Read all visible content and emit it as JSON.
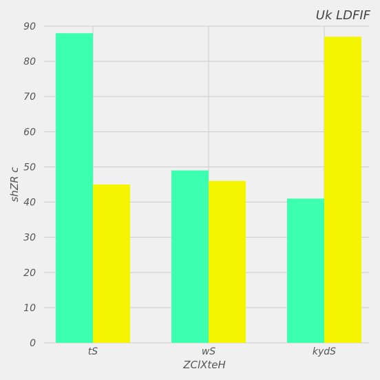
{
  "chart_data": {
    "type": "bar",
    "title": "Uk  LDFIF",
    "xlabel": "ZClXteH",
    "ylabel": "shZR c",
    "categories": [
      "tS",
      "wS",
      "kydS"
    ],
    "series": [
      {
        "values": [
          88,
          49,
          41
        ],
        "color": "#3dffb0"
      },
      {
        "values": [
          45,
          46,
          87
        ],
        "color": "#f5f500"
      }
    ],
    "ylim": [
      0,
      90
    ],
    "yticks": [
      0,
      10,
      20,
      30,
      40,
      50,
      60,
      70,
      80,
      90
    ],
    "grid": true,
    "legend": "none"
  },
  "colors": {
    "background": "#f0f0f0",
    "grid": "#cbcbcb",
    "text": "#555555"
  }
}
